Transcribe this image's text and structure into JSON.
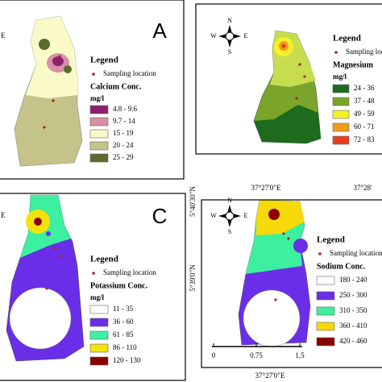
{
  "panel_a": {
    "letter": "A",
    "edge_label": "E",
    "legend": "Legend",
    "sampling": "Sampling location",
    "title": "Calcium Conc.",
    "unit": "mg/l",
    "classes": [
      "4.8 - 9.6",
      "9.7 - 14",
      "15 - 19",
      "20 - 24",
      "25 - 29"
    ],
    "colors": [
      "#8e1f6e",
      "#d98fa6",
      "#fafac8",
      "#c4c48a",
      "#5b6b2e"
    ]
  },
  "panel_b": {
    "compass": [
      "N",
      "W",
      "E",
      "S"
    ],
    "legend": "Legend",
    "sampling": "Sampling location",
    "title": "Magnesium",
    "unit": "mg/l",
    "classes": [
      "24 - 36",
      "37 - 48",
      "49 - 59",
      "60 - 71",
      "72 - 83"
    ],
    "colors": [
      "#1e6b1e",
      "#7aa52a",
      "#f5f02a",
      "#f39c1a",
      "#e83d1e"
    ]
  },
  "panel_c": {
    "letter": "C",
    "edge_label": "E",
    "legend": "Legend",
    "sampling": "Sampling location",
    "title": "Potassium Conc.",
    "unit": "mg/l",
    "classes": [
      "11 - 35",
      "36 - 60",
      "61 - 85",
      "86 - 110",
      "120 - 130"
    ],
    "colors": [
      "#ffffff",
      "#6a2ee8",
      "#3cf0a0",
      "#f5e20a",
      "#8b0000"
    ]
  },
  "panel_d": {
    "compass": [
      "N",
      "W",
      "E",
      "S"
    ],
    "legend": "Legend",
    "sampling": "Sampling location",
    "title": "Sodium Conc.",
    "classes": [
      "180 - 240",
      "250 - 300",
      "310 - 350",
      "360 - 410",
      "420 - 460"
    ],
    "colors": [
      "#ffffff",
      "#6a2ee8",
      "#3cf0a0",
      "#f5d90a",
      "#8b0000"
    ],
    "scale": [
      "0",
      "0.75",
      "1.5"
    ]
  },
  "coordinates": {
    "lat_top": "5°40'30\"N",
    "lon_top": "37°27'0\"E",
    "lon_top_right": "37°28'",
    "lat_bottom": "5°39'0\"N",
    "lon_bottom": "37°27'0\"E"
  }
}
